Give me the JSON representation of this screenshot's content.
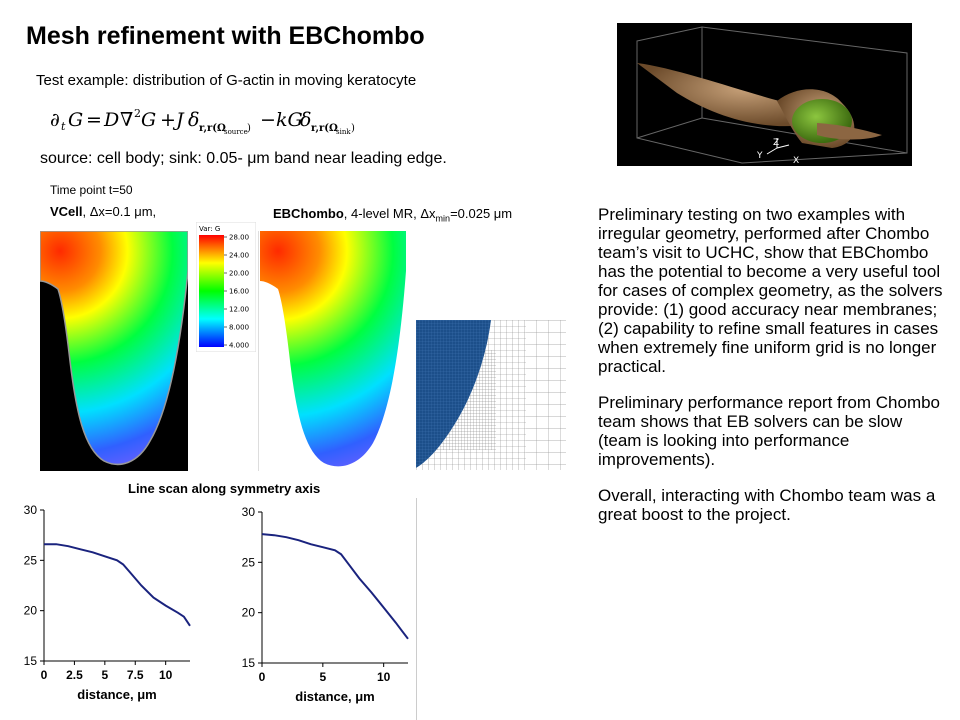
{
  "title": "Mesh refinement with EBChombo",
  "subtitle": "Test example: distribution of G-actin in moving keratocyte",
  "source_line": "source: cell body; sink: 0.05- μm band near leading edge.",
  "time_point": "Time point t=50",
  "vcell_label": {
    "bold": "VCell",
    "rest": ", Δx=0.1 μm,"
  },
  "eb_label": {
    "bold": "EBChombo",
    "rest": ", 4-level MR, Δx",
    "sub": "min",
    "tail": "=0.025 μm"
  },
  "colorbar": {
    "title": "Var: G",
    "ticks": [
      "28.00",
      "24.00",
      "20.00",
      "16.00",
      "12.00",
      "8.000",
      "4.000"
    ],
    "colors": [
      "#ff0000",
      "#ffff00",
      "#00ff00",
      "#00ffff",
      "#0000ff"
    ]
  },
  "cube_axes": {
    "z": "Z",
    "y": "Y",
    "x": "X"
  },
  "line_scan_title": "Line scan along symmetry axis",
  "chart_data": [
    {
      "type": "line",
      "title": "",
      "xlabel": "distance, μm",
      "ylabel": "",
      "xlim": [
        0,
        12
      ],
      "ylim": [
        15,
        30
      ],
      "xticks": [
        "0",
        "2.5",
        "5",
        "7.5",
        "10"
      ],
      "yticks": [
        "15",
        "20",
        "25",
        "30"
      ],
      "grid": false,
      "x": [
        0,
        1,
        2,
        3,
        4,
        5,
        6,
        6.5,
        7,
        8,
        9,
        10,
        11,
        11.5,
        12
      ],
      "y": [
        26.6,
        26.6,
        26.4,
        26.1,
        25.8,
        25.4,
        25.0,
        24.6,
        23.9,
        22.5,
        21.3,
        20.5,
        19.8,
        19.4,
        18.5
      ]
    },
    {
      "type": "line",
      "title": "",
      "xlabel": "distance, μm",
      "ylabel": "",
      "xlim": [
        0,
        12
      ],
      "ylim": [
        15,
        30
      ],
      "xticks": [
        "0",
        "5",
        "10"
      ],
      "yticks": [
        "15",
        "20",
        "25",
        "30"
      ],
      "grid": false,
      "x": [
        0,
        1,
        2,
        3,
        4,
        5,
        6,
        6.5,
        7,
        8,
        9,
        10,
        11,
        11.5,
        12
      ],
      "y": [
        27.8,
        27.7,
        27.5,
        27.2,
        26.8,
        26.5,
        26.2,
        25.8,
        25.0,
        23.4,
        22.0,
        20.5,
        19.0,
        18.2,
        17.4
      ]
    }
  ],
  "right_text": [
    "Preliminary testing on two examples with irregular geometry, performed after Chombo team’s visit to UCHC, show that EBChombo has the potential to become a very useful tool for cases of complex geometry, as the solvers provide: (1) good accuracy near membranes; (2) capability to refine small features in cases when extremely fine uniform grid is no longer practical.",
    "Preliminary performance report from Chombo team shows that EB solvers can be slow (team is looking into performance improvements).",
    "Overall, interacting with Chombo team was a great boost to the project."
  ]
}
